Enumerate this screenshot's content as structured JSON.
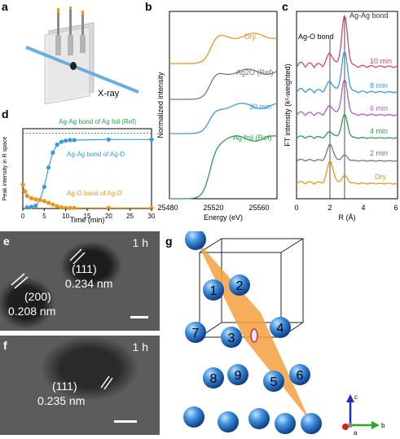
{
  "panels": {
    "a": {
      "label": "a",
      "xray_label": "X-ray"
    },
    "b": {
      "label": "b",
      "xlabel": "Energy (eV)",
      "ylabel": "Normalized intensity"
    },
    "c": {
      "label": "c",
      "xlabel": "R (Å)",
      "ylabel": "FT intensity (k²-weighted)",
      "annotation_agag": "Ag-Ag bond",
      "annotation_ago": "Ag-O bond"
    },
    "d": {
      "label": "d",
      "xlabel": "Time (min)",
      "ylabel": "Peak intensity in R space",
      "ref_label": "Ag-Ag bond of Ag foil (Ref)",
      "agag_label": "Ag-Ag bond of Ag-D",
      "ago_label": "Ag-O bond of Ag-D"
    },
    "e": {
      "label": "e",
      "time": "1 h",
      "plane1": "(111)",
      "dist1": "0.234 nm",
      "plane2": "(200)",
      "dist2": "0.208 nm"
    },
    "f": {
      "label": "f",
      "time": "1 h",
      "plane1": "(111)",
      "dist1": "0.235 nm"
    },
    "g": {
      "label": "g",
      "atoms": [
        "1",
        "2",
        "3",
        "4",
        "5",
        "6",
        "7",
        "8",
        "9"
      ],
      "axis_c": "c",
      "axis_a": "a",
      "axis_b": "b"
    }
  },
  "chart_data": [
    {
      "panel": "b",
      "type": "line",
      "xlabel": "Energy (eV)",
      "ylabel": "Normalized intensity",
      "xlim": [
        25480,
        25580
      ],
      "xticks": [
        "25480",
        "25520",
        "25560"
      ],
      "series": [
        {
          "name": "Dry",
          "color": "#e8961e"
        },
        {
          "name": "Ag2O (Ref)",
          "color": "#777777"
        },
        {
          "name": "30 min",
          "color": "#3a9ad9"
        },
        {
          "name": "Ag foil (Ref)",
          "color": "#2e9e4f"
        }
      ]
    },
    {
      "panel": "c",
      "type": "line",
      "xlabel": "R (Å)",
      "ylabel": "FT intensity (k²-weighted)",
      "xlim": [
        0,
        6
      ],
      "xticks": [
        "0",
        "2",
        "4",
        "6"
      ],
      "series": [
        {
          "name": "10 min",
          "color": "#d6476b"
        },
        {
          "name": "8 min",
          "color": "#3a9ad9"
        },
        {
          "name": "6 min",
          "color": "#b05cc6"
        },
        {
          "name": "4 min",
          "color": "#2e9e4f"
        },
        {
          "name": "2 min",
          "color": "#777777"
        },
        {
          "name": "Dry",
          "color": "#e8961e"
        }
      ]
    },
    {
      "panel": "d",
      "type": "line",
      "xlabel": "Time (min)",
      "ylabel": "Peak intensity in R space",
      "xlim": [
        0,
        30
      ],
      "xticks": [
        "0",
        "5",
        "10",
        "15",
        "20",
        "25",
        "30"
      ],
      "ylim": [
        0,
        1.4
      ],
      "reference_line": 1.32,
      "series": [
        {
          "name": "Ag-Ag bond of Ag-D",
          "color": "#3a9ad9",
          "x": [
            1,
            2,
            3,
            4,
            5,
            6,
            7,
            8,
            9,
            10,
            11,
            12,
            20,
            30
          ],
          "y": [
            0.02,
            0.03,
            0.05,
            0.15,
            0.38,
            0.72,
            0.98,
            1.12,
            1.17,
            1.19,
            1.2,
            1.2,
            1.21,
            1.21
          ]
        },
        {
          "name": "Ag-O bond of Ag-D",
          "color": "#e8961e",
          "x": [
            0,
            0.5,
            1,
            2,
            3,
            4,
            5,
            6,
            7,
            8,
            9,
            10,
            11,
            12,
            20,
            30
          ],
          "y": [
            0.42,
            0.3,
            0.22,
            0.18,
            0.16,
            0.15,
            0.13,
            0.1,
            0.07,
            0.04,
            0.02,
            0.01,
            0.01,
            0.01,
            0.01,
            0.01
          ]
        }
      ]
    }
  ]
}
